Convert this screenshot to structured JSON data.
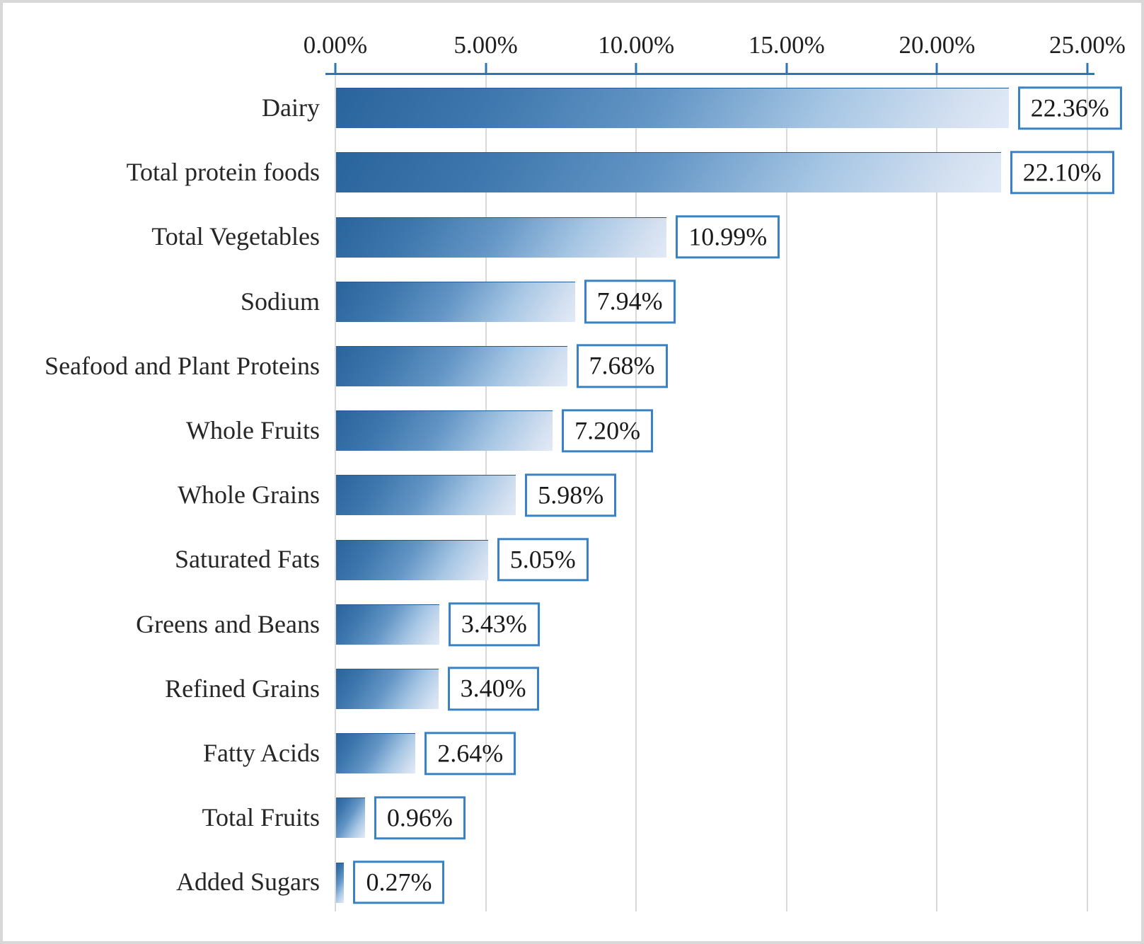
{
  "chart_data": {
    "type": "bar",
    "orientation": "horizontal",
    "title": "",
    "xlabel": "",
    "ylabel": "",
    "xlim": [
      0,
      25
    ],
    "x_tick_values": [
      0,
      5,
      10,
      15,
      20,
      25
    ],
    "x_ticks": [
      "0.00%",
      "5.00%",
      "10.00%",
      "15.00%",
      "20.00%",
      "25.00%"
    ],
    "axis_position": "top",
    "grid": true,
    "legend": false,
    "categories": [
      "Dairy",
      "Total protein foods",
      "Total Vegetables",
      "Sodium",
      "Seafood and Plant Proteins",
      "Whole Fruits",
      "Whole Grains",
      "Saturated Fats",
      "Greens and Beans",
      "Refined Grains",
      "Fatty Acids",
      "Total Fruits",
      "Added Sugars"
    ],
    "values": [
      22.36,
      22.1,
      10.99,
      7.94,
      7.68,
      7.2,
      5.98,
      5.05,
      3.43,
      3.4,
      2.64,
      0.96,
      0.27
    ],
    "value_labels": [
      "22.36%",
      "22.10%",
      "10.99%",
      "7.94%",
      "7.68%",
      "7.20%",
      "5.98%",
      "5.05%",
      "3.43%",
      "3.40%",
      "2.64%",
      "0.96%",
      "0.27%"
    ],
    "colors": {
      "bar_gradient_dark": "#2a649c",
      "bar_gradient_light": "#e1eaf7",
      "axis_line": "#2E75B6",
      "value_box_border": "#3a82c6",
      "gridline": "#d9d9d9",
      "text": "#262626",
      "figure_border": "#d8d8d8",
      "background": "#ffffff"
    }
  }
}
